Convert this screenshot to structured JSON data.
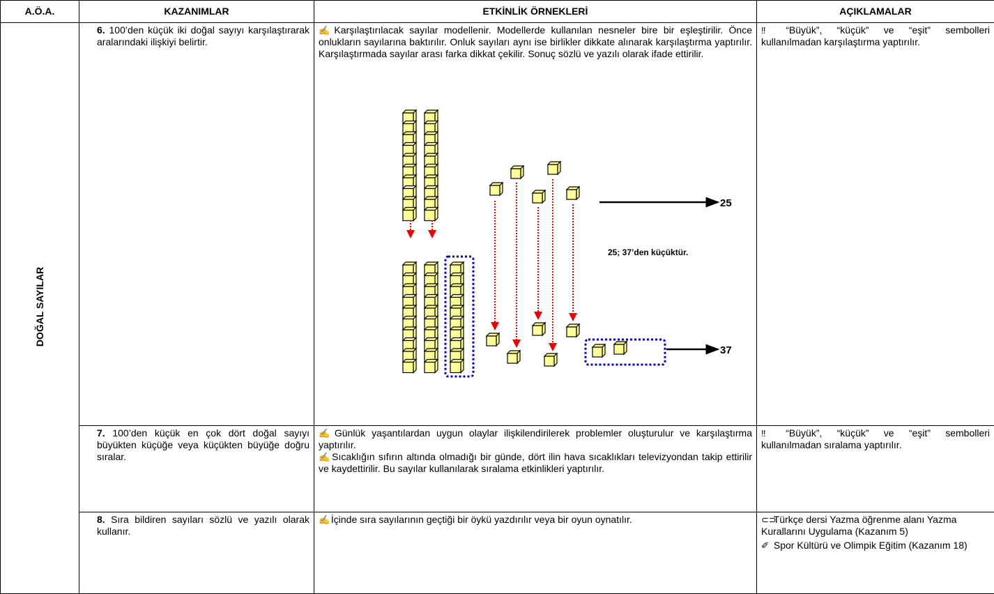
{
  "header": {
    "col1": "A.Ö.A.",
    "col2": "KAZANIMLAR",
    "col3": "ETKİNLİK ÖRNEKLERİ",
    "col4": "AÇIKLAMALAR"
  },
  "area": "DOĞAL SAYILAR",
  "rows": [
    {
      "kazanim": {
        "number": "6.",
        "text": "100’den küçük iki doğal sayıyı karşılaştırarak aralarındaki ilişkiyi belirtir."
      },
      "etkinlik": [
        "Karşılaştırılacak sayılar modellenir. Modellerde kullanılan nesneler bire bir eşleştirilir. Önce onlukların sayılarına baktırılır. Onluk sayıları aynı ise birlikler dikkate alınarak karşılaştırma yaptırılır. Karşılaştırmada sayılar arası farka dikkat çekilir. Sonuç sözlü ve yazılı olarak ifade ettirilir."
      ],
      "aciklama": [
        "“Büyük”, “küçük” ve “eşit” sembolleri kullanılmadan karşılaştırma yaptırılır."
      ]
    },
    {
      "kazanim": {
        "number": "7.",
        "text": "100’den küçük en çok dört doğal sayıyı büyükten küçüğe veya küçükten büyüğe doğru sıralar."
      },
      "etkinlik": [
        "Günlük yaşantılardan uygun olaylar ilişkilendirilerek problemler oluşturulur ve karşılaştırma yaptırılır.",
        "Sıcaklığın sıfırın altında olmadığı bir günde, dört ilin hava sıcaklıkları televizyondan takip ettirilir ve kaydettirilir. Bu sayılar kullanılarak sıralama etkinlikleri yaptırılır."
      ],
      "aciklama": [
        "“Büyük”, “küçük” ve “eşit” sembolleri kullanılmadan sıralama yaptırılır."
      ]
    },
    {
      "kazanim": {
        "number": "8.",
        "text": "Sıra bildiren sayıları sözlü ve yazılı olarak kullanır."
      },
      "etkinlik": [
        "İçinde sıra sayılarının geçtiği bir öykü yazdırılır veya bir oyun oynatılır."
      ],
      "aciklama": [
        "Türkçe dersi Yazma öğrenme alanı Yazma Kurallarını Uygulama (Kazanım 5)",
        "Spor Kültürü ve Olimpik Eğitim (Kazanım 18)"
      ]
    }
  ],
  "diagram": {
    "label_top": "25",
    "statement": "25; 37’den küçüktür.",
    "label_bottom": "37"
  }
}
